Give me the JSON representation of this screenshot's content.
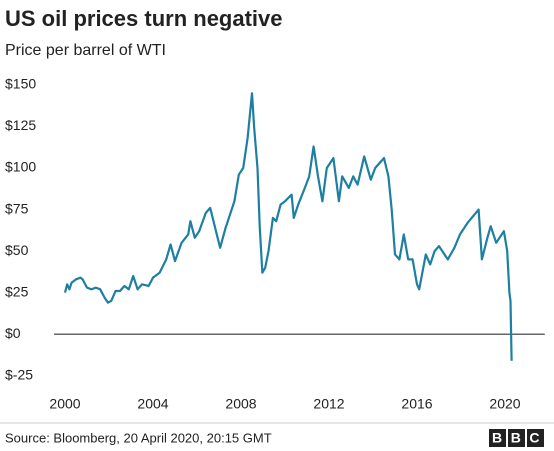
{
  "chart_data": {
    "type": "line",
    "title": "US oil prices turn negative",
    "subtitle": "Price per barrel of WTI",
    "source": "Source: Bloomberg, 20 April 2020, 20:15 GMT",
    "brand": "BBC",
    "x": [
      2000.0,
      2000.1,
      2000.2,
      2000.3,
      2000.5,
      2000.7,
      2000.8,
      2001.0,
      2001.2,
      2001.4,
      2001.6,
      2001.8,
      2001.95,
      2002.1,
      2002.3,
      2002.5,
      2002.7,
      2002.9,
      2003.1,
      2003.3,
      2003.5,
      2003.8,
      2004.0,
      2004.3,
      2004.6,
      2004.8,
      2005.0,
      2005.3,
      2005.6,
      2005.7,
      2005.9,
      2006.1,
      2006.4,
      2006.6,
      2006.9,
      2007.05,
      2007.3,
      2007.5,
      2007.7,
      2007.9,
      2008.1,
      2008.3,
      2008.5,
      2008.6,
      2008.75,
      2008.85,
      2008.97,
      2009.1,
      2009.25,
      2009.45,
      2009.6,
      2009.8,
      2010.0,
      2010.3,
      2010.4,
      2010.6,
      2010.9,
      2011.1,
      2011.3,
      2011.5,
      2011.7,
      2011.9,
      2012.2,
      2012.45,
      2012.6,
      2012.9,
      2013.1,
      2013.3,
      2013.6,
      2013.9,
      2014.1,
      2014.5,
      2014.7,
      2014.85,
      2015.0,
      2015.2,
      2015.4,
      2015.6,
      2015.8,
      2016.0,
      2016.1,
      2016.4,
      2016.6,
      2016.8,
      2017.0,
      2017.4,
      2017.7,
      2017.95,
      2018.3,
      2018.8,
      2018.95,
      2019.2,
      2019.35,
      2019.6,
      2019.95,
      2020.1,
      2020.2,
      2020.25,
      2020.3
    ],
    "series": [
      {
        "name": "WTI",
        "color": "#1d7fa1",
        "values": [
          25,
          30,
          27,
          31,
          33,
          34,
          33,
          28,
          27,
          28,
          27,
          22,
          19,
          20,
          26,
          26,
          29,
          27,
          35,
          27,
          30,
          29,
          34,
          37,
          45,
          54,
          44,
          55,
          60,
          68,
          58,
          62,
          73,
          76,
          60,
          52,
          64,
          72,
          80,
          96,
          100,
          118,
          145,
          124,
          100,
          65,
          37,
          40,
          50,
          70,
          68,
          78,
          80,
          84,
          70,
          78,
          88,
          95,
          113,
          95,
          80,
          100,
          106,
          80,
          95,
          88,
          95,
          90,
          107,
          93,
          100,
          106,
          95,
          75,
          48,
          45,
          60,
          45,
          45,
          30,
          27,
          48,
          42,
          50,
          53,
          45,
          52,
          60,
          67,
          75,
          45,
          58,
          65,
          55,
          62,
          50,
          25,
          20,
          -16
        ]
      }
    ],
    "xlim": [
      1999.5,
      2020.9
    ],
    "xticks": [
      2000,
      2004,
      2008,
      2012,
      2016,
      2020
    ],
    "ylim": [
      -30,
      153
    ],
    "yticks": [
      {
        "value": 150,
        "label": "$150"
      },
      {
        "value": 125,
        "label": "$125"
      },
      {
        "value": 100,
        "label": "$100"
      },
      {
        "value": 75,
        "label": "$75"
      },
      {
        "value": 50,
        "label": "$50"
      },
      {
        "value": 25,
        "label": "$25"
      },
      {
        "value": 0,
        "label": "$0"
      },
      {
        "value": -25,
        "label": "$-25"
      }
    ],
    "grid": false
  }
}
